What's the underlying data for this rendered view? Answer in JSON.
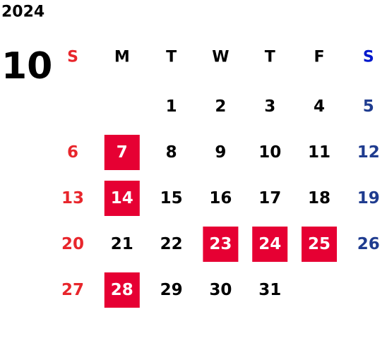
{
  "year": "2024",
  "month": "10",
  "weekdays": [
    "S",
    "M",
    "T",
    "W",
    "T",
    "F",
    "S"
  ],
  "colors": {
    "text": "#000000",
    "sunday": "#e8262c",
    "saturday_header": "#0018cc",
    "saturday": "#1f3c8f",
    "highlight": "#e60033",
    "highlight_text": "#ffffff"
  },
  "weeks": [
    [
      null,
      null,
      {
        "text": "1"
      },
      {
        "text": "2"
      },
      {
        "text": "3"
      },
      {
        "text": "4"
      },
      {
        "text": "5"
      }
    ],
    [
      {
        "text": "6"
      },
      {
        "text": "7",
        "highlight": true
      },
      {
        "text": "8"
      },
      {
        "text": "9"
      },
      {
        "text": "10"
      },
      {
        "text": "11"
      },
      {
        "text": "12"
      }
    ],
    [
      {
        "text": "13"
      },
      {
        "text": "14",
        "highlight": true
      },
      {
        "text": "15"
      },
      {
        "text": "16"
      },
      {
        "text": "17"
      },
      {
        "text": "18"
      },
      {
        "text": "19"
      }
    ],
    [
      {
        "text": "20"
      },
      {
        "text": "21"
      },
      {
        "text": "22"
      },
      {
        "text": "23",
        "highlight": true
      },
      {
        "text": "24",
        "highlight": true
      },
      {
        "text": "25",
        "highlight": true
      },
      {
        "text": "26"
      }
    ],
    [
      {
        "text": "27"
      },
      {
        "text": "28",
        "highlight": true
      },
      {
        "text": "29"
      },
      {
        "text": "30"
      },
      {
        "text": "31"
      },
      null,
      null
    ]
  ]
}
